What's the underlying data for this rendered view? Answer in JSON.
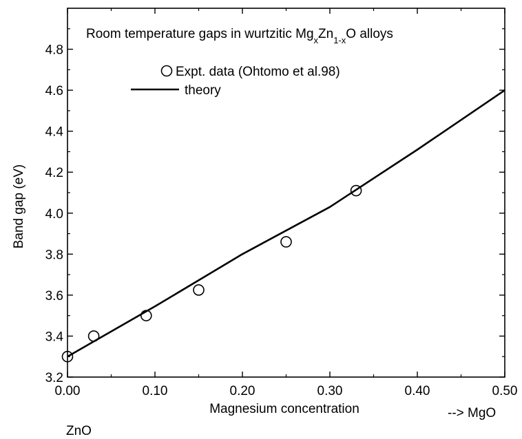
{
  "chart_data": {
    "type": "scatter",
    "title_parts": {
      "prefix": "Room temperature gaps in wurtzitic Mg",
      "sub1": "x",
      "mid": "Zn",
      "sub2": "1-x",
      "suffix": "O alloys"
    },
    "xlabel": "Magnesium concentration",
    "ylabel": "Band gap (eV)",
    "xlim": [
      0.0,
      0.5
    ],
    "ylim": [
      3.2,
      5.0
    ],
    "x_ticks": [
      0.0,
      0.1,
      0.2,
      0.3,
      0.4,
      0.5
    ],
    "x_tick_labels": [
      "0.00",
      "0.10",
      "0.20",
      "0.30",
      "0.40",
      "0.50"
    ],
    "y_ticks": [
      3.2,
      3.4,
      3.6,
      3.8,
      4.0,
      4.2,
      4.4,
      4.6,
      4.8
    ],
    "y_tick_labels": [
      "3.2",
      "3.4",
      "3.6",
      "3.8",
      "4.0",
      "4.2",
      "4.4",
      "4.6",
      "4.8"
    ],
    "legend": {
      "position": "top-left",
      "entries": [
        "Expt. data (Ohtomo et al.98)",
        "theory"
      ]
    },
    "series": [
      {
        "name": "Expt. data (Ohtomo et al.98)",
        "kind": "scatter",
        "marker": "open-circle",
        "x": [
          0.0,
          0.03,
          0.09,
          0.15,
          0.25,
          0.33
        ],
        "y": [
          3.3,
          3.4,
          3.5,
          3.625,
          3.86,
          4.11
        ]
      },
      {
        "name": "theory",
        "kind": "line",
        "x": [
          0.0,
          0.1,
          0.2,
          0.3,
          0.4,
          0.5
        ],
        "y": [
          3.3,
          3.545,
          3.8,
          4.03,
          4.31,
          4.6
        ]
      }
    ],
    "annotations": {
      "left": "ZnO",
      "right": "--> MgO"
    },
    "grid": false,
    "colors": {
      "ink": "#000000",
      "background": "#ffffff"
    }
  }
}
